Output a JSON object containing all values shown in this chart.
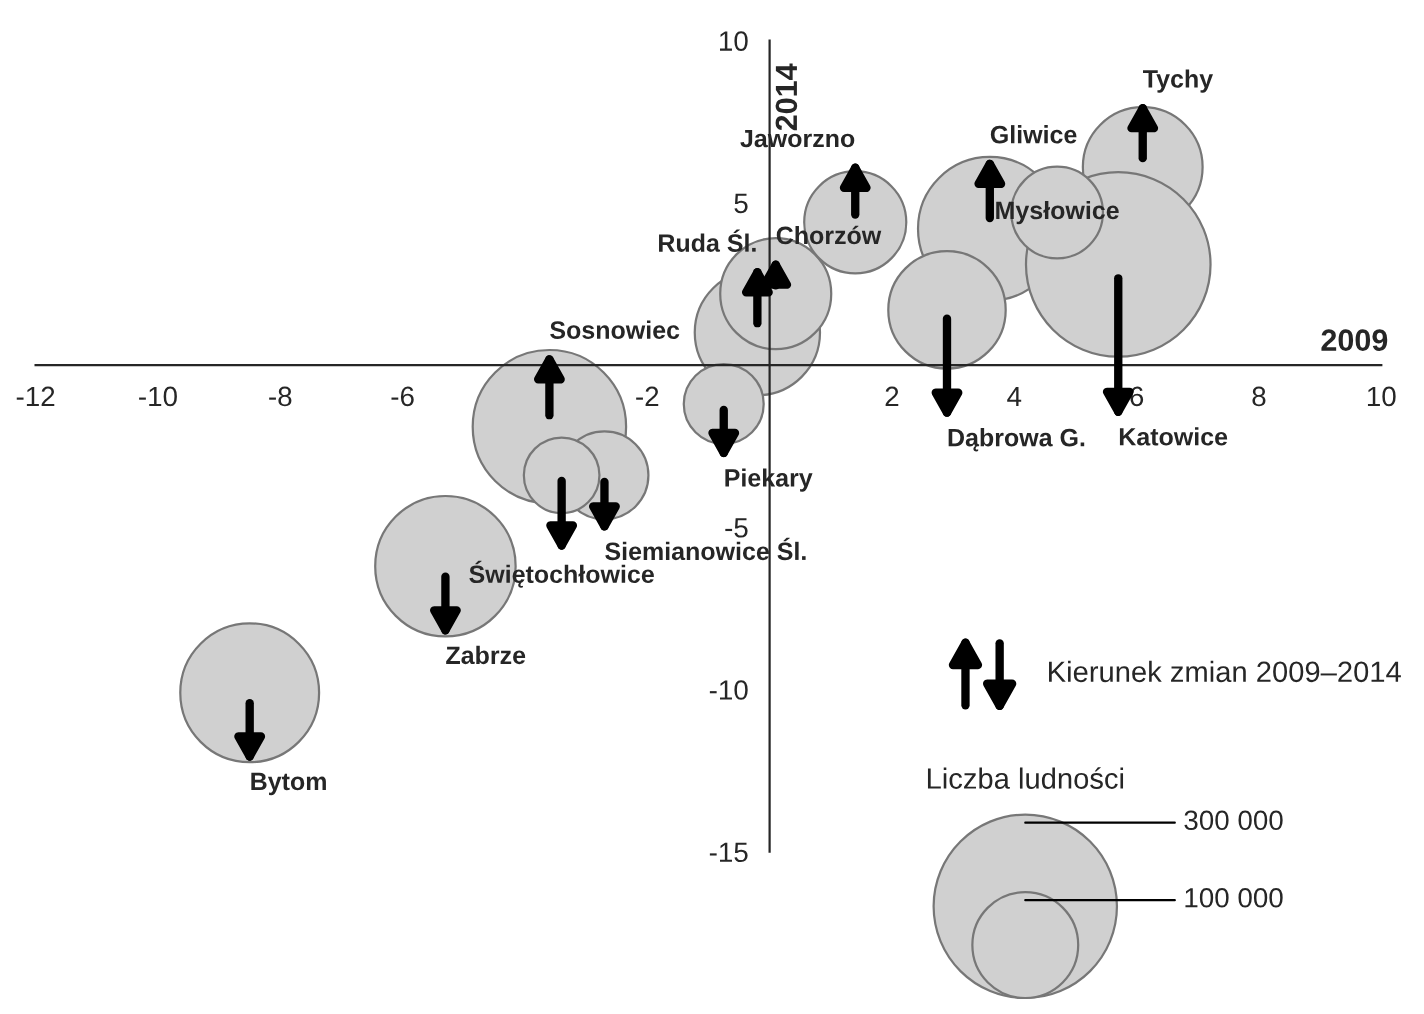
{
  "chart_data": {
    "type": "bubble",
    "xlabel": "2009",
    "ylabel": "2014",
    "xlim": [
      -12,
      10
    ],
    "ylim": [
      -15,
      10
    ],
    "xticks": [
      -12,
      -10,
      -8,
      -6,
      -2,
      2,
      4,
      6,
      8,
      10
    ],
    "yticks": [
      -15,
      -10,
      -5,
      5,
      10
    ],
    "grid": false,
    "legend_title": "Liczba ludności",
    "size_legend": [
      300000,
      100000
    ],
    "series": [
      {
        "color": "#d0d0d0",
        "x": [
          -3.6,
          -0.2,
          0.1,
          1.4,
          3.6,
          6.1
        ],
        "values": [
          -1.9,
          1.0,
          2.2,
          4.4,
          4.2,
          6.1
        ],
        "sizes": [
          210000,
          140000,
          110000,
          93000,
          184000,
          128000
        ]
      },
      {
        "color": "#d0d0d0",
        "x": [
          -0.75,
          -2.7,
          -3.4,
          -5.3,
          -8.5,
          2.9,
          5.7
        ],
        "values": [
          -1.2,
          -3.4,
          -3.4,
          -6.2,
          -10.1,
          1.7,
          3.1
        ],
        "sizes": [
          57000,
          69000,
          51000,
          176000,
          172000,
          123000,
          304000
        ]
      },
      {
        "color": "#d0d0d0",
        "x": [
          4.7
        ],
        "values": [
          4.7
        ],
        "sizes": [
          75000
        ]
      }
    ],
    "annotations": [
      {
        "text": "Sosnowiec",
        "x": -3.6,
        "y": -1.9
      },
      {
        "text": "Ruda Śl.",
        "x": -0.2,
        "y": 1.0
      },
      {
        "text": "Chorzów",
        "x": 0.1,
        "y": 2.2
      },
      {
        "text": "Jaworzno",
        "x": 1.4,
        "y": 4.4
      },
      {
        "text": "Gliwice",
        "x": 3.6,
        "y": 4.2
      },
      {
        "text": "Tychy",
        "x": 6.1,
        "y": 6.1
      },
      {
        "text": "Piekary",
        "x": -0.75,
        "y": -1.2
      },
      {
        "text": "Siemianowice Śl.",
        "x": -2.7,
        "y": -3.4
      },
      {
        "text": "Świętochłowice",
        "x": -3.4,
        "y": -3.4
      },
      {
        "text": "Zabrze",
        "x": -5.3,
        "y": -6.2
      },
      {
        "text": "Bytom",
        "x": -8.5,
        "y": -10.1
      },
      {
        "text": "Dąbrowa G.",
        "x": 2.9,
        "y": 1.7
      },
      {
        "text": "Katowice",
        "x": 5.7,
        "y": 3.1
      },
      {
        "text": "Mysłowice",
        "x": 4.7,
        "y": 4.7
      },
      "Kierunek zmian 2009–2014"
    ]
  }
}
